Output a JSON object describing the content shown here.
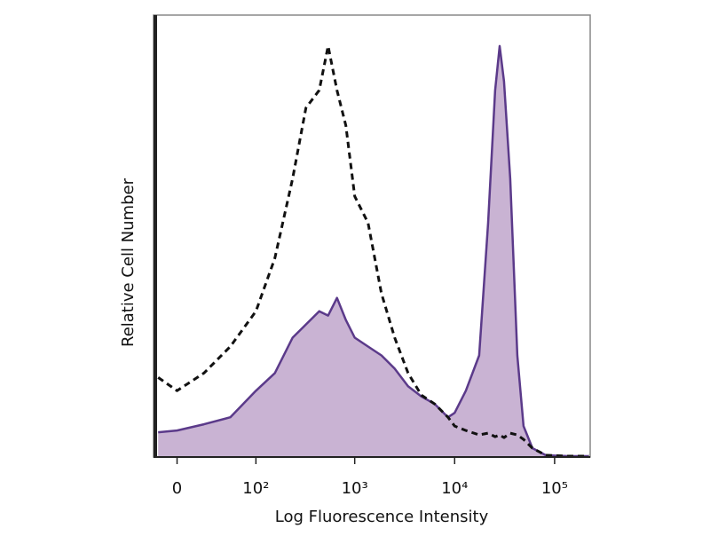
{
  "chart_data": {
    "type": "histogram-overlay",
    "xlabel": "Log Fluorescence Intensity",
    "ylabel": "Relative Cell Number",
    "xscale": "biexponential",
    "xlim": [
      -19,
      227000
    ],
    "ylim": [
      0,
      100
    ],
    "xticks": [
      0,
      {
        "value": 100,
        "label": "10²"
      },
      {
        "value": 1000,
        "label": "10³"
      },
      {
        "value": 10000,
        "label": "10⁴"
      },
      {
        "value": 100000,
        "label": "10⁵"
      }
    ],
    "x": [
      -15,
      0,
      22,
      52,
      100,
      157,
      238,
      324,
      441,
      541,
      665,
      815,
      1000,
      1360,
      1850,
      2510,
      3420,
      4650,
      6310,
      8580,
      10000,
      12950,
      17600,
      21600,
      25400,
      28200,
      31200,
      36000,
      42400,
      48900,
      60000,
      81600,
      135500,
      220000
    ],
    "series": [
      {
        "color": "#5b3a8a",
        "fill": "#c9b3d3",
        "style": "filled",
        "values": [
          5.6,
          6,
          7.4,
          9,
          15,
          19,
          27,
          30,
          33,
          32,
          36,
          31,
          27,
          25,
          23,
          20,
          16,
          13.7,
          12,
          9,
          10,
          15,
          23,
          53,
          83,
          93,
          85,
          63,
          23,
          7,
          2,
          0.4,
          0.2,
          0.2
        ]
      },
      {
        "color": "#111111",
        "style": "dashed",
        "values": [
          18,
          15,
          19,
          25,
          33,
          45,
          63,
          79,
          83,
          93,
          83,
          75,
          59,
          53,
          37,
          27,
          19,
          14,
          12,
          9,
          7,
          6,
          5,
          5.4,
          4.6,
          5,
          4.4,
          5.4,
          5,
          4,
          2,
          0.4,
          0.2,
          0.2
        ]
      }
    ]
  }
}
